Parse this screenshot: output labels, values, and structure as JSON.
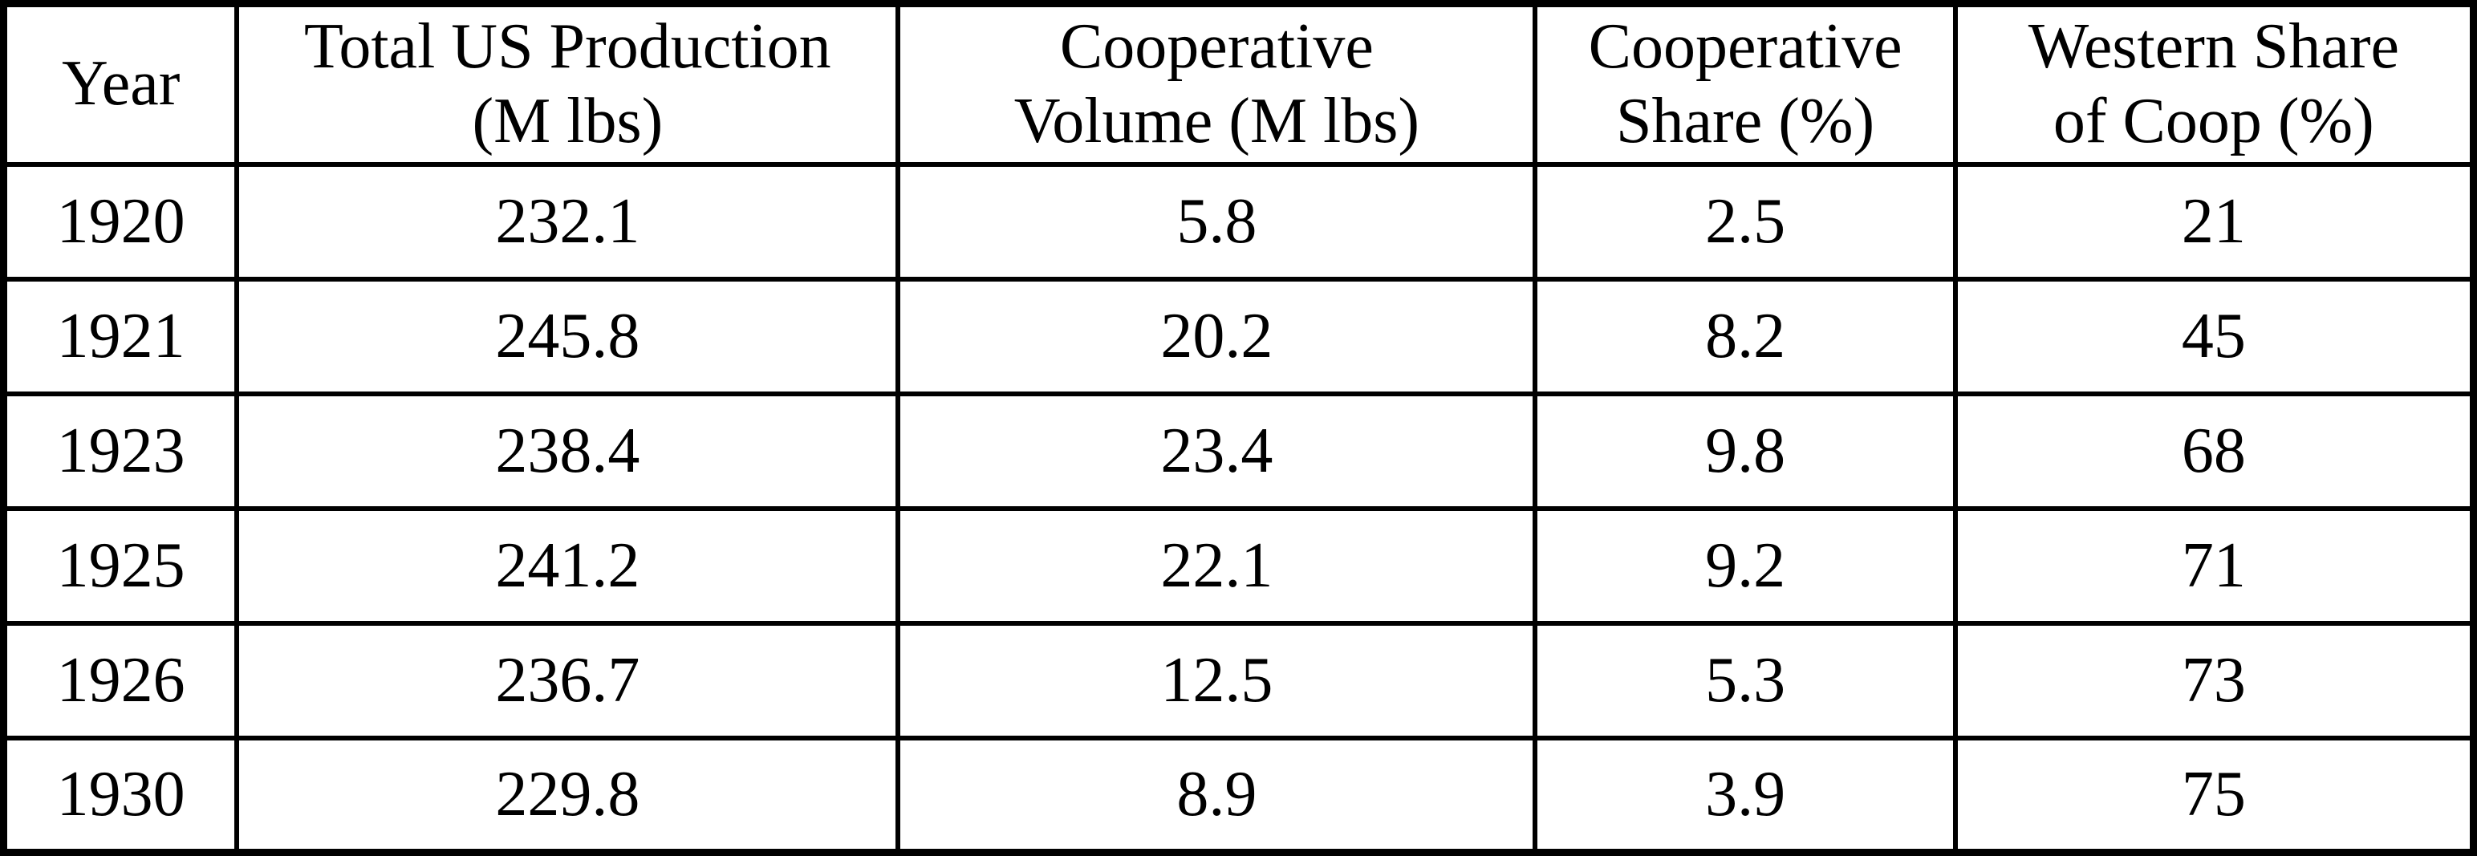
{
  "colors": {
    "background": "#ffffff",
    "border": "#000000",
    "text": "#000000"
  },
  "table": {
    "headers": [
      "Year",
      "Total US Production\n(M lbs)",
      "Cooperative\nVolume (M lbs)",
      "Cooperative\nShare (%)",
      "Western Share\nof Coop (%)"
    ],
    "rows": [
      [
        "1920",
        "232.1",
        "5.8",
        "2.5",
        "21"
      ],
      [
        "1921",
        "245.8",
        "20.2",
        "8.2",
        "45"
      ],
      [
        "1923",
        "238.4",
        "23.4",
        "9.8",
        "68"
      ],
      [
        "1925",
        "241.2",
        "22.1",
        "9.2",
        "71"
      ],
      [
        "1926",
        "236.7",
        "12.5",
        "5.3",
        "73"
      ],
      [
        "1930",
        "229.8",
        "8.9",
        "3.9",
        "75"
      ]
    ]
  },
  "chart_data": {
    "type": "table",
    "title": "",
    "columns": [
      "Year",
      "Total US Production (M lbs)",
      "Cooperative Volume (M lbs)",
      "Cooperative Share (%)",
      "Western Share of Coop (%)"
    ],
    "rows": [
      [
        1920,
        232.1,
        5.8,
        2.5,
        21
      ],
      [
        1921,
        245.8,
        20.2,
        8.2,
        45
      ],
      [
        1923,
        238.4,
        23.4,
        9.8,
        68
      ],
      [
        1925,
        241.2,
        22.1,
        9.2,
        71
      ],
      [
        1926,
        236.7,
        12.5,
        5.3,
        73
      ],
      [
        1930,
        229.8,
        8.9,
        3.9,
        75
      ]
    ]
  }
}
